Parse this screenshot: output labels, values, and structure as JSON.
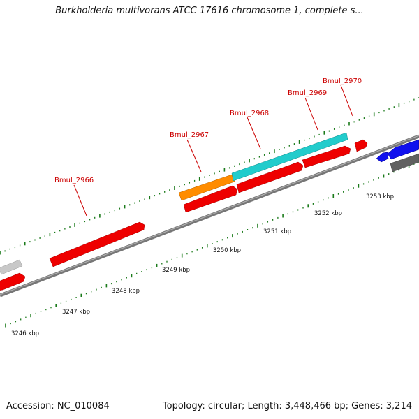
{
  "title": "Burkholderia multivorans ATCC 17616 chromosome 1, complete s...",
  "footer": {
    "accession": "Accession: NC_010084",
    "stats": "Topology: circular; Length: 3,448,466 bp; Genes: 3,214"
  },
  "colors": {
    "cds": "#ee0000",
    "other_feature": "#ff8c00",
    "other_feature_2": "#22cccc",
    "gray_feature": "#c8c8c8",
    "dark_feature": "#606060",
    "blue_feature": "#1010ee",
    "tick": "#1a7a1a",
    "backbone": "#888888",
    "label": "#cc0000"
  },
  "scale_labels": [
    "3246 kbp",
    "3247 kbp",
    "3248 kbp",
    "3249 kbp",
    "3250 kbp",
    "3251 kbp",
    "3252 kbp",
    "3253 kbp"
  ],
  "gene_labels": [
    "Bmul_2966",
    "Bmul_2967",
    "Bmul_2968",
    "Bmul_2969",
    "Bmul_2970"
  ]
}
